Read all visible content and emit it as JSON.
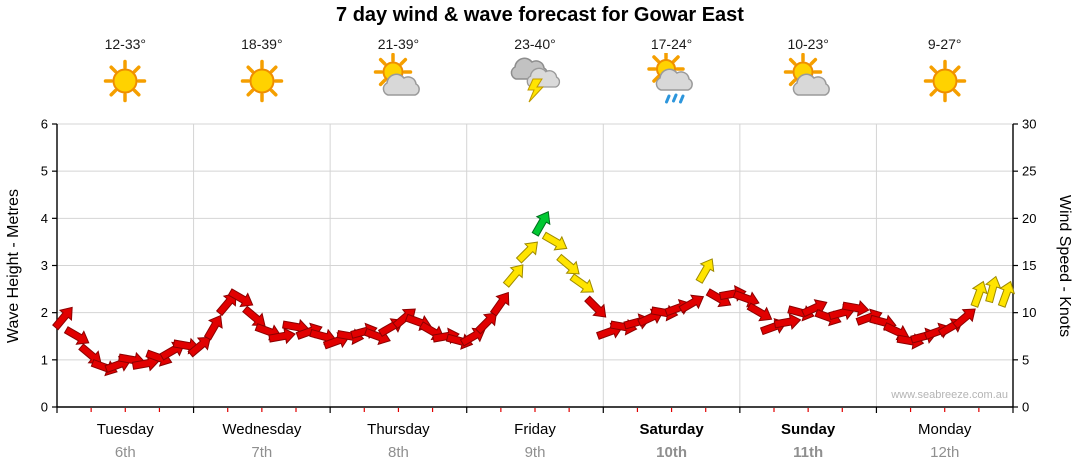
{
  "title": "7 day wind & wave forecast for Gowar East",
  "watermark": "www.seabreeze.com.au",
  "axes": {
    "left_label": "Wave Height - Metres",
    "right_label": "Wind Speed - Knots",
    "left_ticks": [
      "0",
      "1",
      "2",
      "3",
      "4",
      "5",
      "6"
    ],
    "right_ticks": [
      "0",
      "5",
      "10",
      "15",
      "20",
      "25",
      "30"
    ]
  },
  "days": [
    {
      "name": "Tuesday",
      "date": "6th",
      "temp": "12-33°",
      "icon": "sunny",
      "weekend": false
    },
    {
      "name": "Wednesday",
      "date": "7th",
      "temp": "18-39°",
      "icon": "sunny",
      "weekend": false
    },
    {
      "name": "Thursday",
      "date": "8th",
      "temp": "21-39°",
      "icon": "partly-cloudy",
      "weekend": false
    },
    {
      "name": "Friday",
      "date": "9th",
      "temp": "23-40°",
      "icon": "thunderstorm",
      "weekend": false
    },
    {
      "name": "Saturday",
      "date": "10th",
      "temp": "17-24°",
      "icon": "partly-cloudy-showers",
      "weekend": true
    },
    {
      "name": "Sunday",
      "date": "11th",
      "temp": "10-23°",
      "icon": "partly-cloudy",
      "weekend": true
    },
    {
      "name": "Monday",
      "date": "12th",
      "temp": "9-27°",
      "icon": "sunny",
      "weekend": false
    }
  ],
  "chart_data": {
    "type": "wind-arrow-series",
    "categories": [
      "Tuesday 6th",
      "Wednesday 7th",
      "Thursday 8th",
      "Friday 9th",
      "Saturday 10th",
      "Sunday 11th",
      "Monday 12th"
    ],
    "points_per_day": 10,
    "days_shown": 7,
    "ylim_knots": [
      0,
      30
    ],
    "ylim_metres": [
      0,
      6
    ],
    "ylabel_left": "Wave Height - Metres",
    "ylabel_right": "Wind Speed - Knots",
    "knots": [
      9.5,
      7.5,
      5.5,
      4.2,
      4.5,
      5,
      4.6,
      5.2,
      6,
      6.5,
      6.5,
      8.5,
      11,
      11.5,
      9.5,
      8,
      7.5,
      8.5,
      8,
      7.5,
      7,
      7.5,
      8,
      7.5,
      8.5,
      9.5,
      9,
      8,
      7.5,
      7,
      7.5,
      9,
      11,
      14,
      16.5,
      19.5,
      17.5,
      15,
      13,
      10.5,
      8,
      8.5,
      9,
      9.5,
      10,
      10.5,
      11,
      14.5,
      11.5,
      12,
      11.5,
      10,
      8.5,
      9,
      10,
      10.5,
      9.5,
      10,
      10.5,
      9.5,
      9,
      8,
      7,
      7.5,
      8,
      8.5,
      9.5,
      12,
      12.5,
      12
    ],
    "directions_deg": [
      -50,
      30,
      40,
      20,
      -20,
      10,
      -10,
      20,
      -30,
      10,
      -40,
      -60,
      -50,
      30,
      40,
      20,
      -10,
      10,
      -20,
      15,
      -20,
      10,
      -15,
      20,
      -30,
      -40,
      20,
      30,
      -10,
      15,
      -30,
      -45,
      -55,
      -50,
      -45,
      -60,
      30,
      40,
      35,
      45,
      -20,
      10,
      -15,
      -25,
      10,
      -20,
      -30,
      -60,
      30,
      -10,
      20,
      30,
      -20,
      -10,
      15,
      -25,
      20,
      -15,
      10,
      -20,
      15,
      25,
      10,
      -15,
      -20,
      -30,
      -40,
      -70,
      -75,
      -70
    ],
    "colors": [
      "r",
      "r",
      "r",
      "r",
      "r",
      "r",
      "r",
      "r",
      "r",
      "r",
      "r",
      "r",
      "r",
      "r",
      "r",
      "r",
      "r",
      "r",
      "r",
      "r",
      "r",
      "r",
      "r",
      "r",
      "r",
      "r",
      "r",
      "r",
      "r",
      "r",
      "r",
      "r",
      "r",
      "y",
      "y",
      "g",
      "y",
      "y",
      "y",
      "r",
      "r",
      "r",
      "r",
      "r",
      "r",
      "r",
      "r",
      "y",
      "r",
      "r",
      "r",
      "r",
      "r",
      "r",
      "r",
      "r",
      "r",
      "r",
      "r",
      "r",
      "r",
      "r",
      "r",
      "r",
      "r",
      "r",
      "r",
      "y",
      "y",
      "y"
    ],
    "color_map": {
      "r": "#e10000",
      "y": "#ffe400",
      "g": "#00c832"
    },
    "stroke_map": {
      "r": "#8c0000",
      "y": "#9e8a00",
      "g": "#006e1e"
    }
  }
}
